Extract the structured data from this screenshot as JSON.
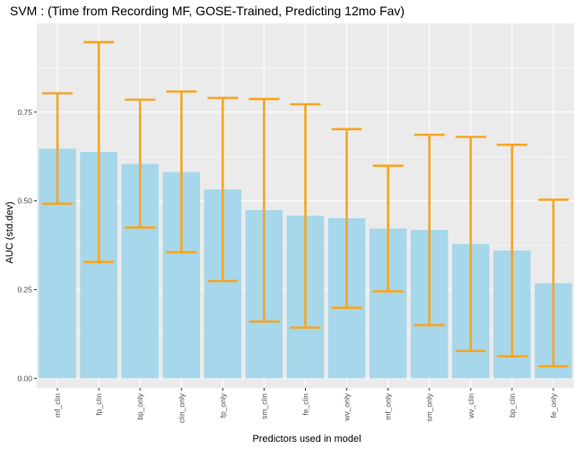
{
  "chart_data": {
    "type": "bar",
    "title": "SVM : (Time from Recording MF, GOSE-Trained, Predicting 12mo Fav)",
    "xlabel": "Predictors used in model",
    "ylabel": "AUC (std.dev)",
    "categories": [
      "mf_clin",
      "fp_clin",
      "bp_only",
      "clin_only",
      "fp_only",
      "sm_clin",
      "fe_clin",
      "wv_only",
      "mf_only",
      "sm_only",
      "wv_clin",
      "bp_clin",
      "fe_only"
    ],
    "series": [
      {
        "values": [
          0.647,
          0.638,
          0.604,
          0.581,
          0.532,
          0.474,
          0.458,
          0.451,
          0.422,
          0.418,
          0.378,
          0.36,
          0.268
        ],
        "error_low": [
          0.492,
          0.328,
          0.425,
          0.355,
          0.274,
          0.16,
          0.143,
          0.199,
          0.245,
          0.15,
          0.077,
          0.062,
          0.034
        ],
        "error_high": [
          0.803,
          0.947,
          0.785,
          0.808,
          0.79,
          0.787,
          0.772,
          0.702,
          0.599,
          0.686,
          0.68,
          0.658,
          0.503
        ]
      }
    ],
    "yticks": [
      "0.00",
      "0.25",
      "0.50",
      "0.75"
    ],
    "ylim": [
      -0.027,
      1.0
    ],
    "grid": true,
    "colors": {
      "bar": "#A6D7EA",
      "error": "#F5A623",
      "panel": "#EBEBEB",
      "grid": "#FFFFFF"
    }
  }
}
